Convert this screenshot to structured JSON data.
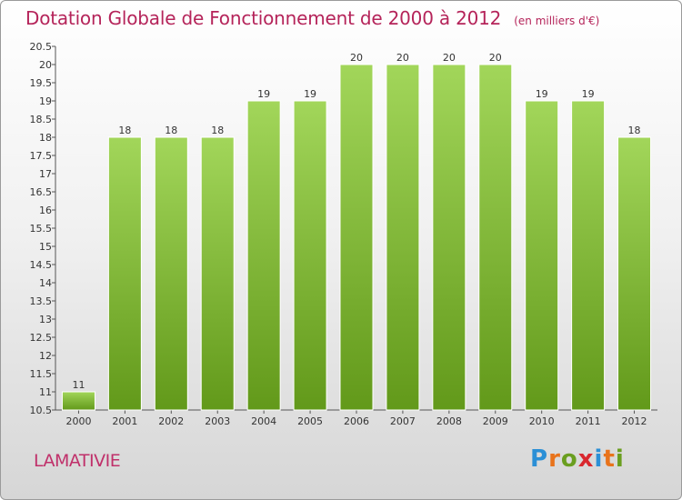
{
  "title": "Dotation Globale de Fonctionnement de 2000 à 2012",
  "unit": "(en milliers d'€)",
  "commune": "LAMATIVIE",
  "logo": {
    "text": "Proxiti",
    "colors": [
      "#2b8fd6",
      "#e8731b",
      "#6a9e1f",
      "#d9272e",
      "#2b8fd6",
      "#e8731b",
      "#6a9e1f"
    ]
  },
  "chart_data": {
    "type": "bar",
    "title": "Dotation Globale de Fonctionnement de 2000 à 2012",
    "subtitle": "(en milliers d'€)",
    "xlabel": "",
    "ylabel": "",
    "categories": [
      "2000",
      "2001",
      "2002",
      "2003",
      "2004",
      "2005",
      "2006",
      "2007",
      "2008",
      "2009",
      "2010",
      "2011",
      "2012"
    ],
    "values": [
      11,
      18,
      18,
      18,
      19,
      19,
      20,
      20,
      20,
      20,
      19,
      19,
      18
    ],
    "ylim": [
      10.5,
      20.5
    ],
    "yticks": [
      "10.5",
      "11",
      "11.5",
      "12",
      "12.5",
      "13",
      "13.5",
      "14",
      "14.5",
      "15",
      "15.5",
      "16",
      "16.5",
      "17",
      "17.5",
      "18",
      "18.5",
      "19",
      "19.5",
      "20",
      "20.5"
    ],
    "grid": false,
    "bar_color": "#7ab82c"
  }
}
